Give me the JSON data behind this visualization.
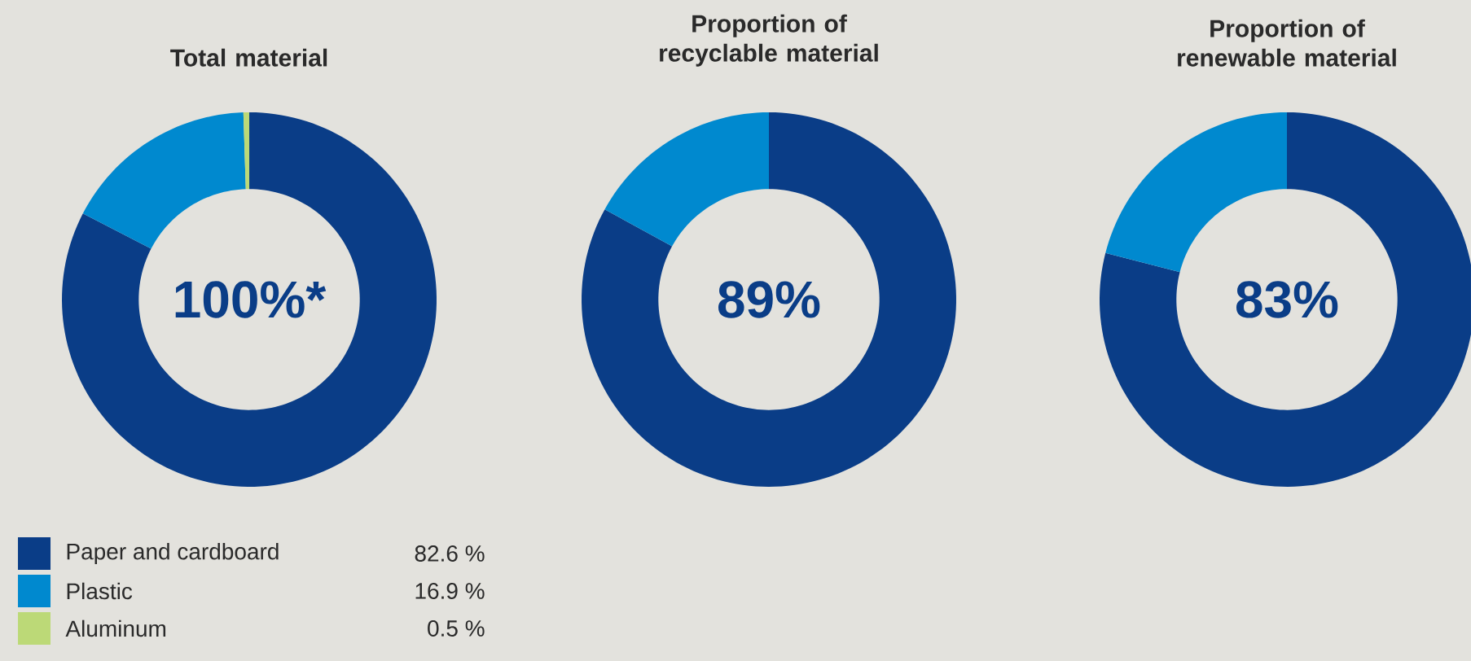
{
  "chart_data": [
    {
      "type": "donut",
      "title": "Total material",
      "categories": [
        "Paper and cardboard",
        "Plastic",
        "Aluminum"
      ],
      "values": [
        82.6,
        16.9,
        0.5
      ],
      "value_labels": [
        "82.6 %",
        "16.9 %",
        "0.5 %"
      ],
      "colors": [
        "#0a3d87",
        "#0089cf",
        "#bcd977"
      ],
      "annotations": [
        "100%*"
      ],
      "legend": "bottom left"
    },
    {
      "type": "donut",
      "title": "Proportion of recyclable material",
      "categories": [
        null,
        null
      ],
      "values": [
        83,
        17
      ],
      "colors": [
        "#0a3d87",
        "#0089cf"
      ],
      "annotations": [
        "89%"
      ]
    },
    {
      "type": "donut",
      "title": "Proportion of renewable material",
      "categories": [
        null,
        null
      ],
      "values": [
        79,
        21
      ],
      "colors": [
        "#0a3d87",
        "#0089cf"
      ],
      "annotations": [
        "83%"
      ]
    }
  ]
}
